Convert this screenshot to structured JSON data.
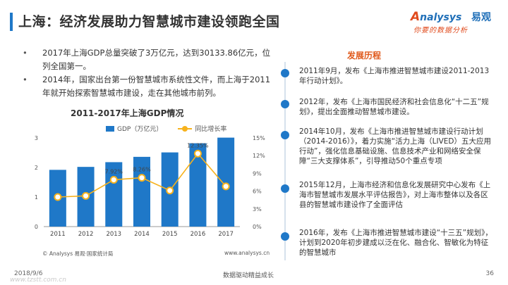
{
  "header": {
    "title": "上海：经济发展助力智慧城市建设领跑全国"
  },
  "logo": {
    "brand_en_a": "A",
    "brand_en_rest": "nalysys",
    "brand_cn": "易观",
    "slogan": "你要的数据分析"
  },
  "bullets": [
    "2017年上海GDP总量突破了3万亿元，达到30133.86亿元，位列全国第一。",
    "2014年，国家出台第一份智慧城市系统性文件，而上海于2011年就开始探索智慧城市建设，走在其他城市前列。"
  ],
  "chart_data": {
    "type": "bar",
    "title": "2011-2017年上海GDP情况",
    "categories": [
      "2011",
      "2012",
      "2013",
      "2014",
      "2015",
      "2016",
      "2017"
    ],
    "series": [
      {
        "name": "GDP（万亿元）",
        "type": "bar",
        "axis": "left",
        "values": [
          1.92,
          2.02,
          2.18,
          2.36,
          2.51,
          2.82,
          3.01
        ],
        "color": "#1f78c8"
      },
      {
        "name": "同比增长率",
        "type": "line",
        "axis": "right",
        "values": [
          5.0,
          5.2,
          7.92,
          8.26,
          6.1,
          12.35,
          6.8
        ],
        "labels": [
          "",
          "",
          "7.92%",
          "8.26%",
          "",
          "12.35%",
          ""
        ],
        "color": "#f7b21c"
      }
    ],
    "y_left": {
      "min": 0,
      "max": 3,
      "ticks": [
        "0",
        "1",
        "2",
        "3"
      ]
    },
    "y_right": {
      "min": 0,
      "max": 15,
      "ticks": [
        "0%",
        "3%",
        "6%",
        "9%",
        "12%",
        "15%"
      ]
    },
    "grid": false,
    "legend_position": "top"
  },
  "source": {
    "left": "© Analysys 易观·国家统计局",
    "right": "www.analysys.cn"
  },
  "timeline": {
    "title": "发展历程",
    "items": [
      "2011年9月，发布《上海市推进智慧城市建设2011-2013年行动计划》。",
      "2012年，发布《上海市国民经济和社会信息化“十二五”规划》，提出全面推动智慧城市建设。",
      "2014年10月，发布《上海市推进智慧城市建设行动计划（2014-2016）》，着力实施“活力上海（LIVED）五大应用行动”，强化信息基础设施、信息技术产业和网络安全保障“三大支撑体系”，引导推动50个重点专项",
      "2015年12月，上海市经济和信息化发展研究中心发布《上海市智慧城市发展水平评估报告》，对上海市整体以及各区县的智慧城市建设作了全面评估",
      "2016年，发布《上海市推进智慧城市建设“十三五”规划》，计划到2020年初步建成以泛在化、融合化、智敏化为特征的智慧城市"
    ]
  },
  "footer": {
    "date": "2018/9/6",
    "center": "数据驱动精益成长",
    "page": "36",
    "url": "www.tzstt.com.cn"
  }
}
